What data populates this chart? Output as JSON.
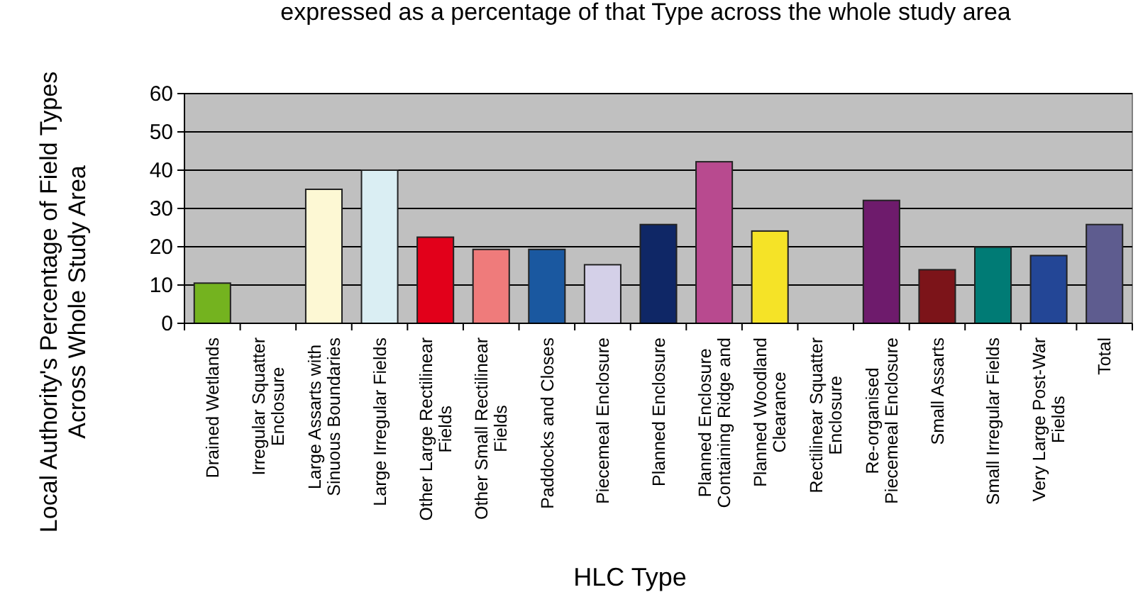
{
  "chart_data": {
    "type": "bar",
    "title": "expressed as a percentage of that Type across the whole study area",
    "xlabel": "HLC Type",
    "ylabel": "Local Authority's Percentage of Field Types Across Whole Study Area",
    "categories": [
      "Drained Wetlands",
      "Irregular Squatter Enclosure",
      "Large Assarts with Sinuous Boundaries",
      "Large Irregular Fields",
      "Other Large Rectilinear Fields",
      "Other Small Rectilinear Fields",
      "Paddocks and Closes",
      "Piecemeal Enclosure",
      "Planned Enclosure",
      "Planned Enclosure Containing Ridge and",
      "Planned Woodland Clearance",
      "Rectilinear Squatter Enclosure",
      "Re-organised Piecemeal Enclosure",
      "Small Assarts",
      "Small Irregular Fields",
      "Very Large Post-War Fields",
      "Total"
    ],
    "values": [
      10.5,
      null,
      35,
      40,
      22.5,
      19.3,
      19.3,
      15.3,
      25.8,
      42.2,
      24.1,
      null,
      32.1,
      14,
      19.9,
      17.7,
      25.8
    ],
    "colors": [
      "#74b31f",
      "#999999",
      "#fdf8d4",
      "#daeef3",
      "#e2001a",
      "#ef7b7b",
      "#1a58a0",
      "#d4d0e8",
      "#0f2766",
      "#b84a8f",
      "#f5e327",
      "#999999",
      "#6e1b6c",
      "#7c1419",
      "#007b75",
      "#234696",
      "#5e5c8f"
    ],
    "ylim": [
      0,
      60
    ],
    "yticks": [
      0,
      10,
      20,
      30,
      40,
      50,
      60
    ],
    "grid": "y"
  }
}
